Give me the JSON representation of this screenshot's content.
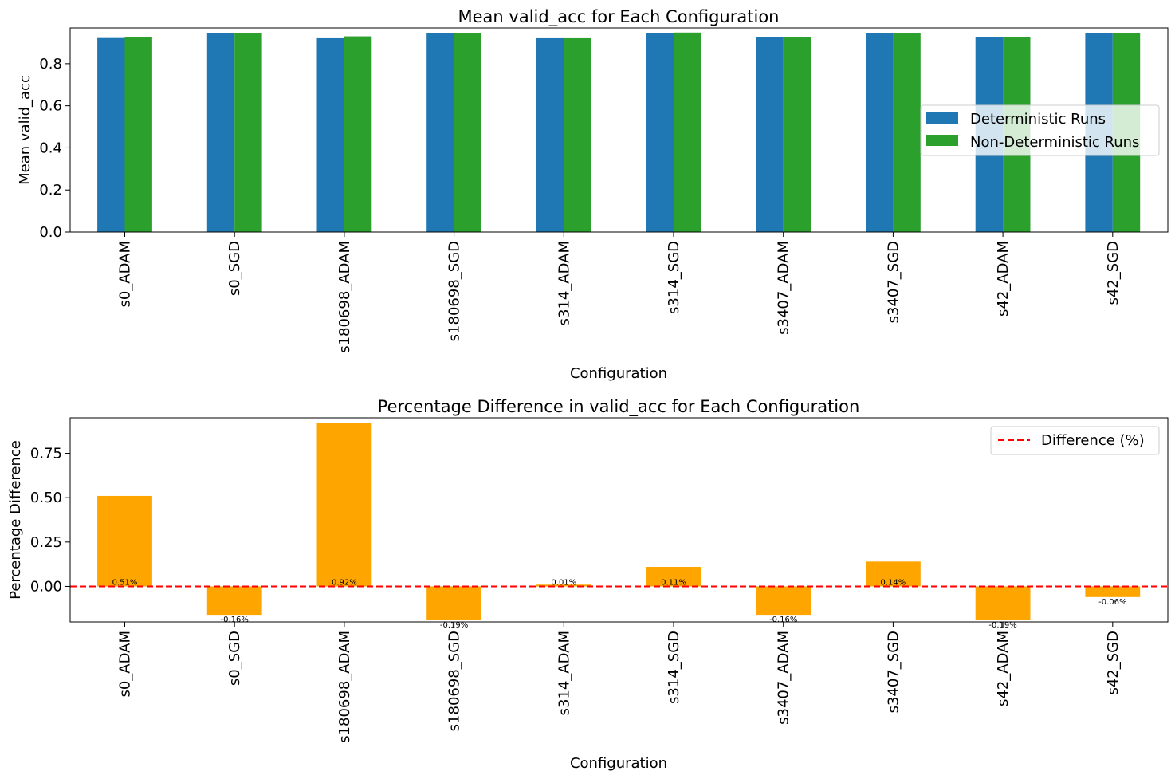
{
  "chart_data": [
    {
      "type": "bar",
      "title": "Mean valid_acc for Each Configuration",
      "xlabel": "Configuration",
      "ylabel": "Mean valid_acc",
      "ylim": [
        0,
        0.97
      ],
      "yticks": [
        "0.0",
        "0.2",
        "0.4",
        "0.6",
        "0.8"
      ],
      "ytick_values": [
        0.0,
        0.2,
        0.4,
        0.6,
        0.8
      ],
      "categories": [
        "s0_ADAM",
        "s0_SGD",
        "s180698_ADAM",
        "s180698_SGD",
        "s314_ADAM",
        "s314_SGD",
        "s3407_ADAM",
        "s3407_SGD",
        "s42_ADAM",
        "s42_SGD"
      ],
      "series": [
        {
          "name": "Deterministic Runs",
          "color": "#1f77b4",
          "values": [
            0.922,
            0.946,
            0.921,
            0.947,
            0.921,
            0.947,
            0.928,
            0.946,
            0.928,
            0.947
          ]
        },
        {
          "name": "Non-Deterministic Runs",
          "color": "#2ca02c",
          "values": [
            0.927,
            0.945,
            0.93,
            0.945,
            0.921,
            0.948,
            0.926,
            0.947,
            0.926,
            0.946
          ]
        }
      ],
      "legend_position": "center-right",
      "grid": false
    },
    {
      "type": "bar",
      "title": "Percentage Difference in valid_acc for Each Configuration",
      "xlabel": "Configuration",
      "ylabel": "Percentage Difference",
      "ylim": [
        -0.2,
        0.95
      ],
      "yticks": [
        "0.00",
        "0.25",
        "0.50",
        "0.75"
      ],
      "ytick_values": [
        0.0,
        0.25,
        0.5,
        0.75
      ],
      "categories": [
        "s0_ADAM",
        "s0_SGD",
        "s180698_ADAM",
        "s180698_SGD",
        "s314_ADAM",
        "s314_SGD",
        "s3407_ADAM",
        "s3407_SGD",
        "s42_ADAM",
        "s42_SGD"
      ],
      "series": [
        {
          "name": "",
          "color": "#ffa500",
          "values": [
            0.51,
            -0.16,
            0.92,
            -0.19,
            0.01,
            0.11,
            -0.16,
            0.14,
            -0.19,
            -0.06
          ]
        }
      ],
      "data_labels": [
        "0.51%",
        "-0.16%",
        "0.92%",
        "-0.19%",
        "0.01%",
        "0.11%",
        "-0.16%",
        "0.14%",
        "-0.19%",
        "-0.06%"
      ],
      "reference_line": {
        "y": 0,
        "style": "dashed",
        "color": "#ff0000",
        "label": "Difference (%)"
      },
      "legend_position": "top-right",
      "grid": false
    }
  ]
}
